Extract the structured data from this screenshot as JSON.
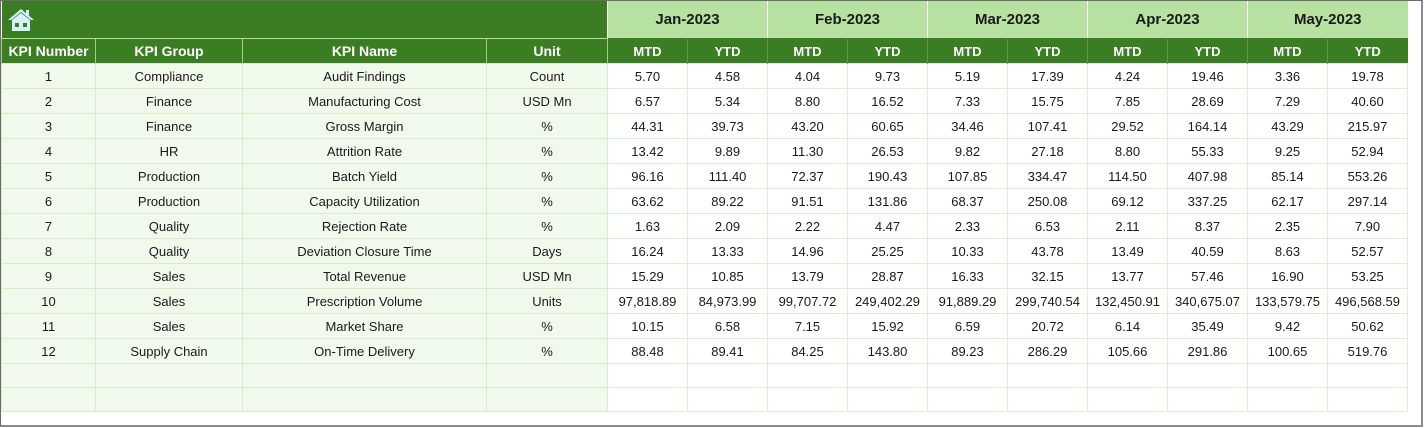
{
  "header": {
    "home_icon": "home-icon",
    "months": [
      "Jan-2023",
      "Feb-2023",
      "Mar-2023",
      "Apr-2023",
      "May-2023"
    ],
    "columns": [
      "KPI Number",
      "KPI Group",
      "KPI Name",
      "Unit"
    ],
    "sub_columns": [
      "MTD",
      "YTD"
    ]
  },
  "colors": {
    "dark_green": "#3b7d23",
    "light_green_header": "#b7e1a1",
    "label_cell_bg": "#f1f9ec",
    "grid_line": "#d5ecc9"
  },
  "rows": [
    {
      "num": "1",
      "group": "Compliance",
      "name": "Audit Findings",
      "unit": "Count",
      "vals": [
        "5.70",
        "4.58",
        "4.04",
        "9.73",
        "5.19",
        "17.39",
        "4.24",
        "19.46",
        "3.36",
        "19.78"
      ]
    },
    {
      "num": "2",
      "group": "Finance",
      "name": "Manufacturing Cost",
      "unit": "USD Mn",
      "vals": [
        "6.57",
        "5.34",
        "8.80",
        "16.52",
        "7.33",
        "15.75",
        "7.85",
        "28.69",
        "7.29",
        "40.60"
      ]
    },
    {
      "num": "3",
      "group": "Finance",
      "name": "Gross Margin",
      "unit": "%",
      "vals": [
        "44.31",
        "39.73",
        "43.20",
        "60.65",
        "34.46",
        "107.41",
        "29.52",
        "164.14",
        "43.29",
        "215.97"
      ]
    },
    {
      "num": "4",
      "group": "HR",
      "name": "Attrition Rate",
      "unit": "%",
      "vals": [
        "13.42",
        "9.89",
        "11.30",
        "26.53",
        "9.82",
        "27.18",
        "8.80",
        "55.33",
        "9.25",
        "52.94"
      ]
    },
    {
      "num": "5",
      "group": "Production",
      "name": "Batch Yield",
      "unit": "%",
      "vals": [
        "96.16",
        "111.40",
        "72.37",
        "190.43",
        "107.85",
        "334.47",
        "114.50",
        "407.98",
        "85.14",
        "553.26"
      ]
    },
    {
      "num": "6",
      "group": "Production",
      "name": "Capacity Utilization",
      "unit": "%",
      "vals": [
        "63.62",
        "89.22",
        "91.51",
        "131.86",
        "68.37",
        "250.08",
        "69.12",
        "337.25",
        "62.17",
        "297.14"
      ]
    },
    {
      "num": "7",
      "group": "Quality",
      "name": "Rejection Rate",
      "unit": "%",
      "vals": [
        "1.63",
        "2.09",
        "2.22",
        "4.47",
        "2.33",
        "6.53",
        "2.11",
        "8.37",
        "2.35",
        "7.90"
      ]
    },
    {
      "num": "8",
      "group": "Quality",
      "name": "Deviation Closure Time",
      "unit": "Days",
      "vals": [
        "16.24",
        "13.33",
        "14.96",
        "25.25",
        "10.33",
        "43.78",
        "13.49",
        "40.59",
        "8.63",
        "52.57"
      ]
    },
    {
      "num": "9",
      "group": "Sales",
      "name": "Total Revenue",
      "unit": "USD Mn",
      "vals": [
        "15.29",
        "10.85",
        "13.79",
        "28.87",
        "16.33",
        "32.15",
        "13.77",
        "57.46",
        "16.90",
        "53.25"
      ]
    },
    {
      "num": "10",
      "group": "Sales",
      "name": "Prescription Volume",
      "unit": "Units",
      "vals": [
        "97,818.89",
        "84,973.99",
        "99,707.72",
        "249,402.29",
        "91,889.29",
        "299,740.54",
        "132,450.91",
        "340,675.07",
        "133,579.75",
        "496,568.59"
      ]
    },
    {
      "num": "11",
      "group": "Sales",
      "name": "Market Share",
      "unit": "%",
      "vals": [
        "10.15",
        "6.58",
        "7.15",
        "15.92",
        "6.59",
        "20.72",
        "6.14",
        "35.49",
        "9.42",
        "50.62"
      ]
    },
    {
      "num": "12",
      "group": "Supply Chain",
      "name": "On-Time Delivery",
      "unit": "%",
      "vals": [
        "88.48",
        "89.41",
        "84.25",
        "143.80",
        "89.23",
        "286.29",
        "105.66",
        "291.86",
        "100.65",
        "519.76"
      ]
    }
  ],
  "empty_rows": 2
}
